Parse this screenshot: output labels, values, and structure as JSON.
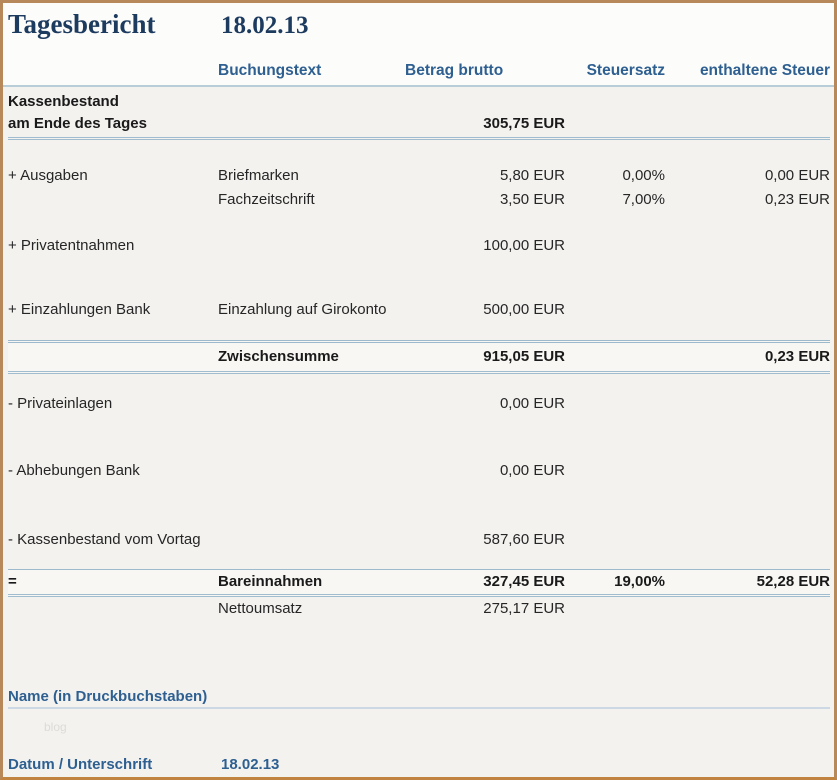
{
  "report": {
    "title": "Tagesbericht",
    "date": "18.02.13"
  },
  "columns": {
    "buchungstext": "Buchungstext",
    "betrag": "Betrag brutto",
    "steuersatz": "Steuersatz",
    "steuer": "enthaltene Steuer"
  },
  "rows": [
    {
      "label_line1": "Kassenbestand",
      "label_line2": "am Ende des Tages",
      "betrag": "305,75 EUR"
    },
    {
      "label": "+ Ausgaben",
      "text": "Briefmarken",
      "betrag": "5,80 EUR",
      "steuersatz": "0,00%",
      "steuer": "0,00 EUR"
    },
    {
      "label": "",
      "text": "Fachzeitschrift",
      "betrag": "3,50 EUR",
      "steuersatz": "7,00%",
      "steuer": "0,23 EUR"
    },
    {
      "label": "+ Privatentnahmen",
      "text": "",
      "betrag": "100,00 EUR",
      "steuersatz": "",
      "steuer": ""
    },
    {
      "label": "+ Einzahlungen Bank",
      "text": "Einzahlung auf Girokonto",
      "betrag": "500,00 EUR",
      "steuersatz": "",
      "steuer": ""
    },
    {
      "label": "",
      "text": "Zwischensumme",
      "betrag": "915,05 EUR",
      "steuersatz": "",
      "steuer": "0,23 EUR"
    },
    {
      "label": "- Privateinlagen",
      "text": "",
      "betrag": "0,00 EUR",
      "steuersatz": "",
      "steuer": ""
    },
    {
      "label": "- Abhebungen Bank",
      "text": "",
      "betrag": "0,00 EUR",
      "steuersatz": "",
      "steuer": ""
    },
    {
      "label": "- Kassenbestand vom Vortag",
      "text": "",
      "betrag": "587,60 EUR",
      "steuersatz": "",
      "steuer": ""
    },
    {
      "label": "=",
      "text": "Bareinnahmen",
      "betrag": "327,45 EUR",
      "steuersatz": "19,00%",
      "steuer": "52,28 EUR"
    },
    {
      "label": "",
      "text": "Nettoumsatz",
      "betrag": "275,17 EUR",
      "steuersatz": "",
      "steuer": ""
    }
  ],
  "footer": {
    "name_label": "Name (in Druckbuchstaben)",
    "watermark": "blog",
    "datum_label": "Datum / Unterschrift",
    "datum_value": "18.02.13"
  },
  "colors": {
    "border_tan": "#b6885a",
    "title_navy": "#1d3a5f",
    "header_blue": "#2e5f91",
    "divider_light_blue": "#a0bccf",
    "body_background": "#f3f2ef"
  }
}
